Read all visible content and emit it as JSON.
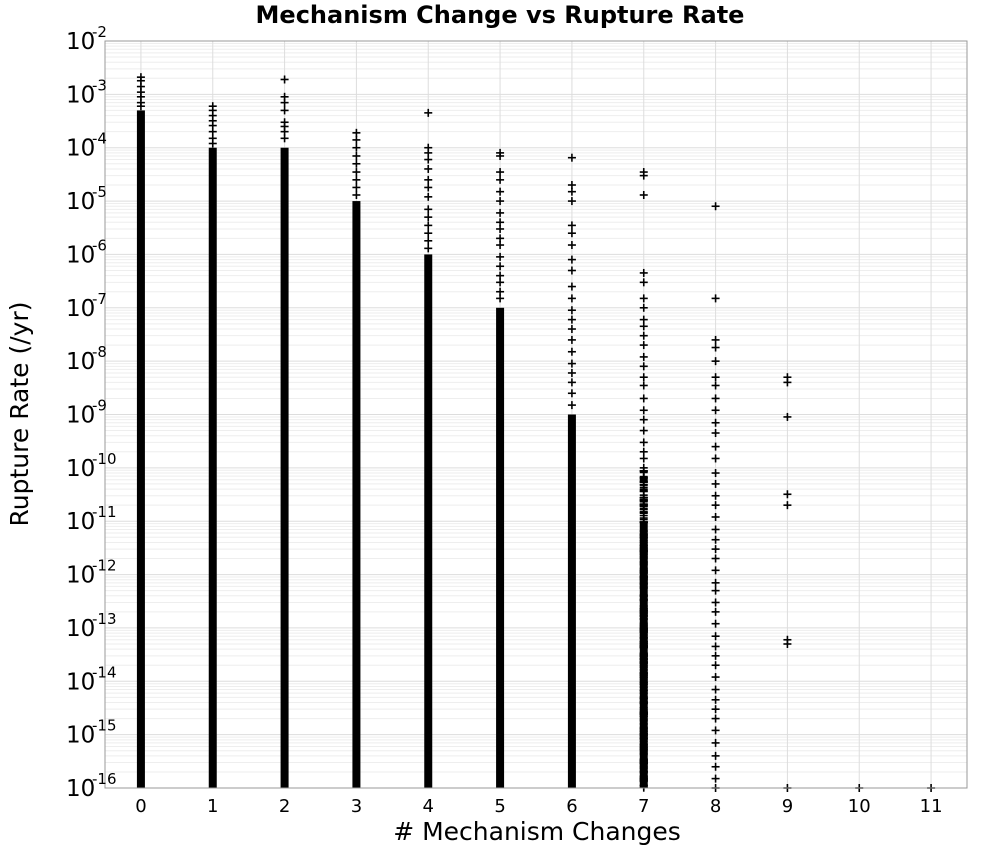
{
  "chart_data": {
    "type": "scatter",
    "title": "Mechanism Change vs Rupture Rate",
    "xlabel": "# Mechanism Changes",
    "ylabel": "Rupture Rate (/yr)",
    "x_ticks": [
      "0",
      "1",
      "2",
      "3",
      "4",
      "5",
      "6",
      "7",
      "8",
      "9",
      "10",
      "11"
    ],
    "y_ticks": [
      {
        "base": "10",
        "exp": "-2"
      },
      {
        "base": "10",
        "exp": "-3"
      },
      {
        "base": "10",
        "exp": "-4"
      },
      {
        "base": "10",
        "exp": "-5"
      },
      {
        "base": "10",
        "exp": "-6"
      },
      {
        "base": "10",
        "exp": "-7"
      },
      {
        "base": "10",
        "exp": "-8"
      },
      {
        "base": "10",
        "exp": "-9"
      },
      {
        "base": "10",
        "exp": "-10"
      },
      {
        "base": "10",
        "exp": "-11"
      },
      {
        "base": "10",
        "exp": "-12"
      },
      {
        "base": "10",
        "exp": "-13"
      },
      {
        "base": "10",
        "exp": "-14"
      },
      {
        "base": "10",
        "exp": "-15"
      },
      {
        "base": "10",
        "exp": "-16"
      }
    ],
    "xlim": [
      -0.5,
      11.5
    ],
    "ylim": [
      1e-16,
      0.01
    ],
    "y_scale": "log",
    "grid": true,
    "marker": "plus",
    "marker_color": "#000000",
    "columns": [
      {
        "x": 0,
        "dense_range": [
          1e-16,
          0.0005
        ],
        "outliers": [
          0.0021,
          0.0018,
          0.0014,
          0.0011,
          0.0009,
          0.0007,
          0.0006
        ]
      },
      {
        "x": 1,
        "dense_range": [
          1e-16,
          0.0001
        ],
        "outliers": [
          0.0006,
          0.0005,
          0.0004,
          0.00032,
          0.00026,
          0.0002,
          0.00015,
          0.00012
        ]
      },
      {
        "x": 2,
        "dense_range": [
          1e-16,
          0.0001
        ],
        "outliers": [
          0.0019,
          0.0009,
          0.0007,
          0.0005,
          0.0003,
          0.00025,
          0.0002,
          0.00015
        ]
      },
      {
        "x": 3,
        "dense_range": [
          1e-16,
          1e-05
        ],
        "outliers": [
          0.00019,
          0.00014,
          0.0001,
          7e-05,
          5e-05,
          3.5e-05,
          2.5e-05,
          1.8e-05,
          1.3e-05
        ]
      },
      {
        "x": 4,
        "dense_range": [
          1e-16,
          1e-06
        ],
        "outliers": [
          0.00045,
          0.0001,
          8e-05,
          6e-05,
          4e-05,
          2.5e-05,
          1.8e-05,
          1.2e-05,
          7e-06,
          5e-06,
          3.5e-06,
          2.5e-06,
          1.8e-06,
          1.3e-06
        ]
      },
      {
        "x": 5,
        "dense_range": [
          1e-16,
          1e-07
        ],
        "outliers": [
          8e-05,
          7e-05,
          3.5e-05,
          2.5e-05,
          1.5e-05,
          1e-05,
          6e-06,
          4e-06,
          3e-06,
          2e-06,
          1.5e-06,
          9e-07,
          6e-07,
          4e-07,
          3e-07,
          2e-07,
          1.5e-07
        ]
      },
      {
        "x": 6,
        "dense_range": [
          1e-16,
          1e-09
        ],
        "outliers": [
          6.5e-05,
          2e-05,
          1.5e-05,
          1e-05,
          3.5e-06,
          2.5e-06,
          1.5e-06,
          8e-07,
          5e-07,
          2.5e-07,
          1.5e-07,
          9e-08,
          6e-08,
          4e-08,
          2.5e-08,
          1.5e-08,
          9e-09,
          6e-09,
          4e-09,
          2.5e-09,
          1.5e-09
        ]
      },
      {
        "x": 7,
        "dense_range": [
          1e-16,
          1e-11
        ],
        "outliers": [
          3.5e-05,
          3e-05,
          1.3e-05,
          4.5e-07,
          3e-07,
          1.5e-07,
          1e-07,
          6e-08,
          4.5e-08,
          3e-08,
          2e-08,
          1.2e-08,
          8e-09,
          5e-09,
          3.5e-09,
          2e-09,
          1.2e-09,
          8e-10,
          5e-10,
          3e-10,
          2e-10,
          1.5e-10,
          1e-10,
          6e-11,
          4e-11,
          2.5e-11,
          1.5e-11
        ],
        "sparse_band": [
          1e-16,
          1e-10
        ]
      },
      {
        "x": 8,
        "dense_range": null,
        "outliers": [
          8e-06,
          1.5e-07,
          2.5e-08,
          1.8e-08,
          1e-08,
          5e-09,
          3.5e-09,
          2e-09,
          1.2e-09,
          7e-10,
          4.5e-10,
          2.5e-10,
          1.5e-10,
          8e-11,
          5e-11,
          3e-11,
          2e-11,
          1.2e-11,
          7e-12,
          4.5e-12,
          3e-12,
          2e-12,
          1.2e-12,
          7e-13,
          5e-13,
          3e-13,
          2e-13,
          1.2e-13,
          7e-14,
          4.5e-14,
          3e-14,
          2e-14,
          1.2e-14,
          7e-15,
          4.5e-15,
          3e-15,
          2e-15,
          1.2e-15,
          7e-16,
          4e-16,
          2.5e-16,
          1.5e-16,
          1e-16
        ]
      },
      {
        "x": 9,
        "dense_range": null,
        "outliers": [
          5e-09,
          4e-09,
          9e-10,
          3.2e-11,
          2e-11,
          6e-14,
          5e-14,
          1e-16
        ]
      },
      {
        "x": 10,
        "dense_range": null,
        "outliers": [
          1e-16
        ]
      },
      {
        "x": 11,
        "dense_range": null,
        "outliers": [
          1e-16
        ]
      }
    ]
  }
}
